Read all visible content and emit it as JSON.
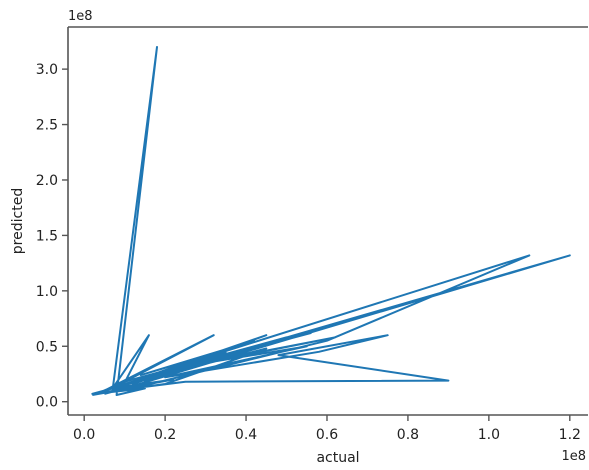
{
  "chart_data": {
    "type": "line",
    "title": "",
    "xlabel": "actual",
    "ylabel": "predicted",
    "x_offset_label": "1e8",
    "y_offset_label": "1e8",
    "xlim": [
      -0.04,
      1.245
    ],
    "ylim": [
      -0.12,
      3.38
    ],
    "x_ticks": [
      0.0,
      0.2,
      0.4,
      0.6,
      0.8,
      1.0,
      1.2
    ],
    "x_tick_labels": [
      "0.0",
      "0.2",
      "0.4",
      "0.6",
      "0.8",
      "1.0",
      "1.2"
    ],
    "y_ticks": [
      0.0,
      0.5,
      1.0,
      1.5,
      2.0,
      2.5,
      3.0
    ],
    "y_tick_labels": [
      "0.0",
      "0.5",
      "1.0",
      "1.5",
      "2.0",
      "2.5",
      "3.0"
    ],
    "grid": false,
    "series": [
      {
        "color": "#1f77b4",
        "points": [
          [
            0.02,
            0.06
          ],
          [
            0.08,
            0.1
          ],
          [
            0.12,
            0.14
          ],
          [
            0.05,
            0.08
          ],
          [
            0.15,
            0.12
          ],
          [
            0.08,
            0.06
          ],
          [
            0.18,
            3.2
          ],
          [
            0.07,
            0.1
          ],
          [
            0.1,
            0.18
          ],
          [
            0.03,
            0.07
          ],
          [
            0.22,
            0.2
          ],
          [
            0.07,
            0.12
          ],
          [
            0.16,
            0.6
          ],
          [
            0.09,
            0.1
          ],
          [
            0.25,
            0.3
          ],
          [
            0.05,
            0.1
          ],
          [
            0.32,
            0.6
          ],
          [
            0.1,
            0.18
          ],
          [
            0.28,
            0.36
          ],
          [
            0.15,
            0.2
          ],
          [
            0.35,
            0.44
          ],
          [
            0.12,
            0.16
          ],
          [
            0.38,
            0.5
          ],
          [
            0.14,
            0.24
          ],
          [
            0.42,
            0.55
          ],
          [
            0.18,
            0.26
          ],
          [
            0.45,
            0.6
          ],
          [
            0.2,
            0.28
          ],
          [
            0.5,
            0.58
          ],
          [
            0.22,
            0.3
          ],
          [
            0.56,
            0.62
          ],
          [
            0.25,
            0.32
          ],
          [
            0.62,
            0.58
          ],
          [
            0.3,
            0.35
          ],
          [
            0.55,
            0.5
          ],
          [
            0.2,
            0.22
          ],
          [
            0.58,
            0.45
          ],
          [
            0.75,
            0.6
          ],
          [
            0.48,
            0.42
          ],
          [
            0.9,
            0.19
          ],
          [
            0.25,
            0.18
          ],
          [
            0.12,
            0.12
          ],
          [
            0.6,
            0.55
          ],
          [
            1.1,
            1.32
          ],
          [
            0.3,
            0.4
          ],
          [
            0.15,
            0.18
          ],
          [
            1.2,
            1.32
          ],
          [
            0.35,
            0.42
          ],
          [
            0.08,
            0.14
          ],
          [
            0.45,
            0.48
          ],
          [
            0.2,
            0.16
          ],
          [
            0.02,
            0.07
          ],
          [
            0.4,
            0.45
          ],
          [
            0.1,
            0.12
          ],
          [
            0.05,
            0.07
          ]
        ]
      }
    ]
  }
}
